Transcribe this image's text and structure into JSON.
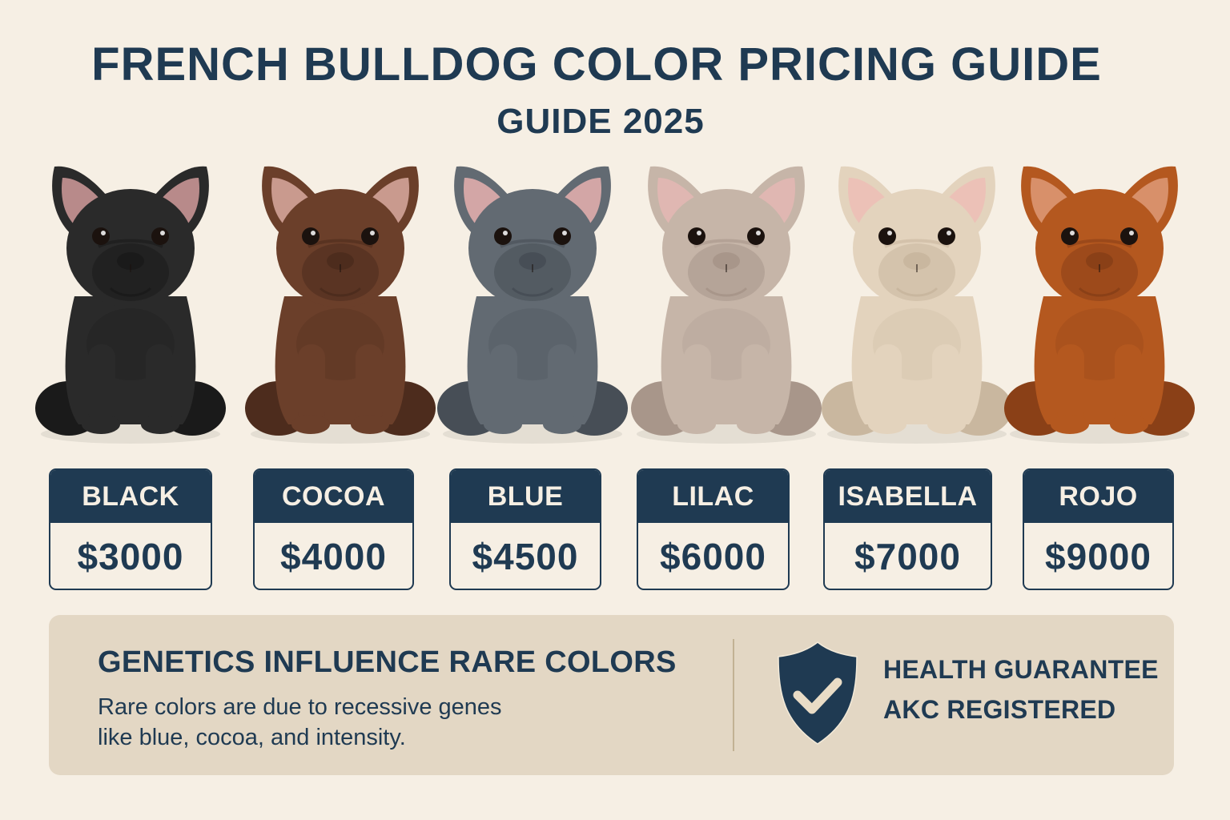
{
  "header": {
    "title": "FRENCH BULLDOG COLOR PRICING GUIDE",
    "subtitle": "GUIDE 2025"
  },
  "colors": {
    "navy": "#1f3a52",
    "background": "#f6efe4",
    "panel": "#e3d7c4"
  },
  "dogs": [
    {
      "name": "BLACK",
      "price": "$3000",
      "coat": "#2a2a2a",
      "shade": "#1a1a1a",
      "ear": "#b88a8a"
    },
    {
      "name": "COCOA",
      "price": "$4000",
      "coat": "#6b3f2a",
      "shade": "#4d2c1d",
      "ear": "#c99a8e"
    },
    {
      "name": "BLUE",
      "price": "$4500",
      "coat": "#626a72",
      "shade": "#474e56",
      "ear": "#d3a6a6"
    },
    {
      "name": "LILAC",
      "price": "$6000",
      "coat": "#c6b5a8",
      "shade": "#a8968a",
      "ear": "#e0b7b2"
    },
    {
      "name": "ISABELLA",
      "price": "$7000",
      "coat": "#e3d3bd",
      "shade": "#c9b79f",
      "ear": "#ecc1b7"
    },
    {
      "name": "ROJO",
      "price": "$9000",
      "coat": "#b4581f",
      "shade": "#8a4017",
      "ear": "#d8906a"
    }
  ],
  "info": {
    "title": "GENETICS INFLUENCE RARE COLORS",
    "body_line1": "Rare colors are due to recessive genes",
    "body_line2": "like blue, cocoa, and intensity.",
    "badge_line1": "HEALTH GUARANTEE",
    "badge_line2": "AKC REGISTERED",
    "badge_icon": "shield-check-icon"
  }
}
